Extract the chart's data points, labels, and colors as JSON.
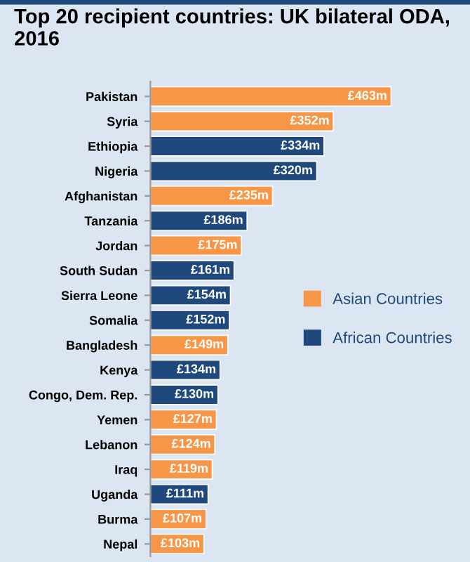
{
  "chart_data": {
    "type": "bar",
    "orientation": "horizontal",
    "title": "Top 20 recipient countries: UK bilateral ODA, 2016",
    "categories": [
      "Pakistan",
      "Syria",
      "Ethiopia",
      "Nigeria",
      "Afghanistan",
      "Tanzania",
      "Jordan",
      "South Sudan",
      "Sierra Leone",
      "Somalia",
      "Bangladesh",
      "Kenya",
      "Congo, Dem. Rep.",
      "Yemen",
      "Lebanon",
      "Iraq",
      "Uganda",
      "Burma",
      "Nepal"
    ],
    "series": [
      {
        "name": "Asian Countries",
        "color": "#f79646",
        "values": [
          463,
          352,
          null,
          null,
          235,
          null,
          175,
          null,
          null,
          null,
          149,
          null,
          null,
          127,
          124,
          119,
          null,
          107,
          103
        ],
        "value_labels": [
          "£463m",
          "£352m",
          null,
          null,
          "£235m",
          null,
          "£175m",
          null,
          null,
          null,
          "£149m",
          null,
          null,
          "£127m",
          "£124m",
          "£119m",
          null,
          "£107m",
          "£103m"
        ]
      },
      {
        "name": "African Countries",
        "color": "#1f497d",
        "values": [
          null,
          null,
          334,
          320,
          null,
          186,
          null,
          161,
          154,
          152,
          null,
          134,
          130,
          null,
          null,
          null,
          111,
          null,
          null
        ],
        "value_labels": [
          null,
          null,
          "£334m",
          "£320m",
          null,
          "£186m",
          null,
          "£161m",
          "£154m",
          "£152m",
          null,
          "£134m",
          "£130m",
          null,
          null,
          null,
          "£111m",
          null,
          null
        ]
      }
    ],
    "legend": "right",
    "grid": false
  }
}
